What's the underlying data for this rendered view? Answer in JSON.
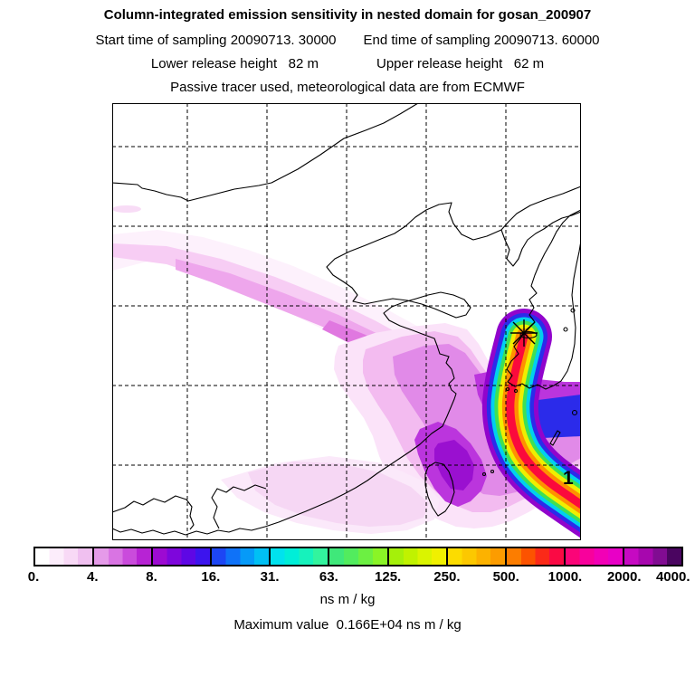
{
  "header": {
    "title": "Column-integrated emission sensitivity in nested domain for gosan_200907",
    "sampling_start": "Start time of sampling 20090713. 30000",
    "sampling_end": "End time of sampling 20090713. 60000",
    "lower_release": "Lower release height   82 m",
    "upper_release": "Upper release height   62 m",
    "tracer_info": "Passive tracer used, meteorological data are from ECMWF"
  },
  "map": {
    "receptor_site": "gosan",
    "receptor_marker": "asterisk-star",
    "trajectory_label": "1"
  },
  "colorbar": {
    "units_label": "ns m / kg",
    "tick_labels": [
      "0.",
      "4.",
      "8.",
      "16.",
      "31.",
      "63.",
      "125.",
      "250.",
      "500.",
      "1000.",
      "2000.",
      "4000."
    ],
    "segments": [
      [
        "#ffffff",
        "#fcedfb",
        "#f8d9f6",
        "#f0c0f0"
      ],
      [
        "#e59ae9",
        "#d974e3",
        "#ca4bdc",
        "#b723d4"
      ],
      [
        "#9d0ad2",
        "#7e06dc",
        "#5e07e5",
        "#3c14ee"
      ],
      [
        "#1d46f4",
        "#0f72f8",
        "#069af8",
        "#00c0f4"
      ],
      [
        "#00e2ee",
        "#00eed8",
        "#16f2bc",
        "#32f49e"
      ],
      [
        "#3fe87a",
        "#52ec5e",
        "#6cf042",
        "#8af426"
      ],
      [
        "#a5f00a",
        "#c0f200",
        "#daf400",
        "#f0f000"
      ],
      [
        "#fcdc00",
        "#fcc800",
        "#fcb200",
        "#fc9c00"
      ],
      [
        "#fc7d00",
        "#fc5300",
        "#fb2a18",
        "#fa0a44"
      ],
      [
        "#fb0578",
        "#f8019c",
        "#f200b6",
        "#e800c6"
      ],
      [
        "#c609c2",
        "#a707ae",
        "#810c92",
        "#4a0560"
      ]
    ]
  },
  "footer": {
    "max_value_line": "Maximum value  0.166E+04 ns m / kg"
  },
  "chart_data": {
    "type": "heatmap",
    "title": "Column-integrated emission sensitivity in nested domain for gosan_200907",
    "colorbar_levels": [
      0,
      4,
      8,
      16,
      31,
      63,
      125,
      250,
      500,
      1000,
      2000,
      4000
    ],
    "colorbar_units": "ns m / kg",
    "maximum_value": {
      "text": "0.166E+04",
      "approx_numeric": 1660,
      "units": "ns m / kg"
    },
    "receptor": {
      "site": "gosan_200907",
      "sampling_start": "20090713. 30000",
      "sampling_end": "20090713. 60000",
      "lower_release_height_m": 82,
      "upper_release_height_m": 62,
      "tracer": "Passive",
      "meteorology": "ECMWF"
    },
    "trajectory_label": "1",
    "map_region": "East Asia nested domain (eastern China, Korea, Taiwan, East China Sea)",
    "grid": {
      "style": "dashed",
      "vertical_lines": 5,
      "horizontal_lines": 5
    },
    "plume_description": "Highest sensitivity (>250 ns m/kg, red/orange core) extends from the Gosan receptor star southward over the East China Sea then curves southeast out of the domain edge near the label 1; moderate values (4-63, purple/blue) spread east toward the domain edge and around Taiwan; a faint tail (<4, pale pink) stretches northwest across inland China."
  }
}
